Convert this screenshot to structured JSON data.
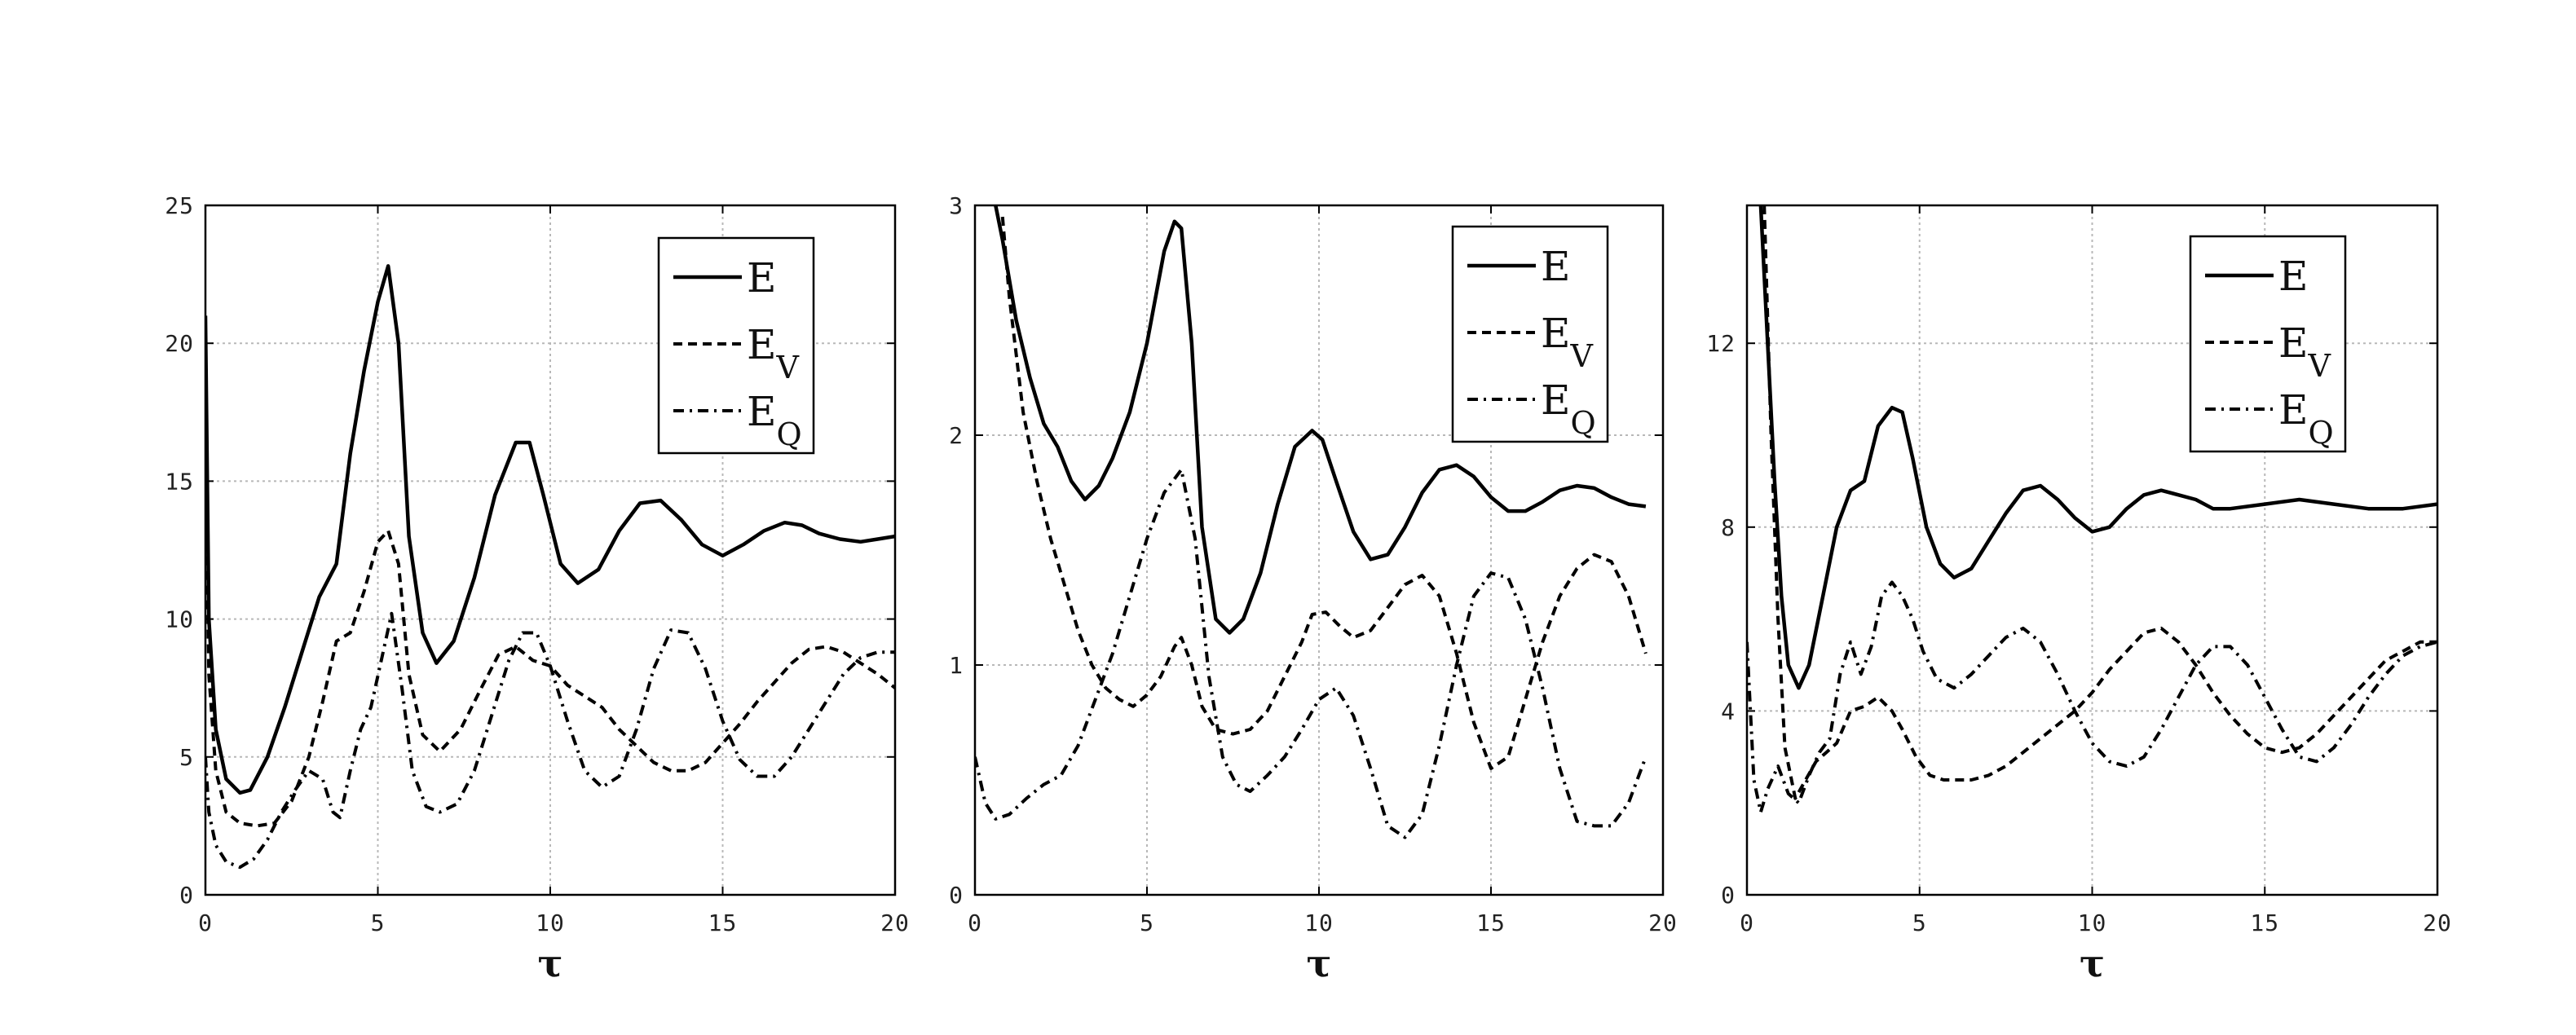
{
  "chart_data": [
    {
      "type": "line",
      "xlabel": "τ",
      "ylabel": "",
      "xlim": [
        0,
        20
      ],
      "ylim": [
        0,
        25
      ],
      "xticks": [
        "0",
        "5",
        "10",
        "15",
        "20"
      ],
      "yticks": [
        "0",
        "5",
        "10",
        "15",
        "20",
        "25"
      ],
      "grid": true,
      "legend_position": "top-right",
      "series": [
        {
          "name": "E",
          "sub": "",
          "style": "solid",
          "x": [
            0,
            0.1,
            0.3,
            0.6,
            1.0,
            1.3,
            1.8,
            2.3,
            2.8,
            3.3,
            3.8,
            4.2,
            4.6,
            5.0,
            5.3,
            5.6,
            5.9,
            6.3,
            6.7,
            7.2,
            7.8,
            8.4,
            9.0,
            9.4,
            9.8,
            10.3,
            10.8,
            11.4,
            12.0,
            12.6,
            13.2,
            13.8,
            14.4,
            15.0,
            15.6,
            16.2,
            16.8,
            17.3,
            17.8,
            18.4,
            19.0,
            19.5,
            20
          ],
          "y": [
            21,
            10,
            6,
            4.2,
            3.7,
            3.8,
            5,
            6.8,
            8.8,
            10.8,
            12,
            16,
            19,
            21.5,
            22.8,
            20,
            13,
            9.5,
            8.4,
            9.2,
            11.5,
            14.5,
            16.4,
            16.4,
            14.5,
            12,
            11.3,
            11.8,
            13.2,
            14.2,
            14.3,
            13.6,
            12.7,
            12.3,
            12.7,
            13.2,
            13.5,
            13.4,
            13.1,
            12.9,
            12.8,
            12.9,
            13.0
          ]
        },
        {
          "name": "E",
          "sub": "V",
          "style": "dashed",
          "x": [
            0,
            0.1,
            0.3,
            0.6,
            1.0,
            1.5,
            2.0,
            2.5,
            3.0,
            3.4,
            3.8,
            4.2,
            4.6,
            5.0,
            5.3,
            5.6,
            5.9,
            6.3,
            6.8,
            7.4,
            8.0,
            8.5,
            9.0,
            9.5,
            10.0,
            10.5,
            11.0,
            11.5,
            12.0,
            12.5,
            13.0,
            13.5,
            14.0,
            14.5,
            15.0,
            15.5,
            16.0,
            16.5,
            17.0,
            17.5,
            18.0,
            18.5,
            19.0,
            19.5,
            20
          ],
          "y": [
            16,
            8,
            4.5,
            3.0,
            2.6,
            2.5,
            2.6,
            3.4,
            5,
            7,
            9.2,
            9.5,
            11,
            12.8,
            13.2,
            12.0,
            8,
            5.8,
            5.2,
            6,
            7.5,
            8.7,
            9.0,
            8.5,
            8.3,
            7.6,
            7.2,
            6.8,
            6.0,
            5.4,
            4.8,
            4.5,
            4.5,
            4.8,
            5.5,
            6.2,
            7.0,
            7.7,
            8.4,
            8.9,
            9.0,
            8.8,
            8.4,
            8.0,
            7.5
          ]
        },
        {
          "name": "E",
          "sub": "Q",
          "style": "dashdot",
          "x": [
            0,
            0.1,
            0.3,
            0.6,
            1.0,
            1.4,
            1.8,
            2.2,
            2.6,
            3.0,
            3.4,
            3.7,
            3.9,
            4.2,
            4.5,
            4.8,
            5.1,
            5.4,
            5.7,
            6.0,
            6.4,
            6.8,
            7.3,
            7.8,
            8.3,
            8.8,
            9.2,
            9.6,
            10.0,
            10.5,
            11.0,
            11.5,
            12.0,
            12.5,
            13.0,
            13.5,
            14.0,
            14.5,
            15.0,
            15.5,
            16.0,
            16.5,
            17.0,
            17.5,
            18.0,
            18.5,
            19.0,
            19.5,
            20
          ],
          "y": [
            5,
            3,
            1.8,
            1.2,
            1.0,
            1.3,
            2.0,
            3,
            3.8,
            4.5,
            4.2,
            3.0,
            2.8,
            4.5,
            6.0,
            6.8,
            8.5,
            10.2,
            7.5,
            4.5,
            3.2,
            3.0,
            3.3,
            4.5,
            6.5,
            8.5,
            9.5,
            9.5,
            8.3,
            6.3,
            4.5,
            3.9,
            4.3,
            6.0,
            8.2,
            9.6,
            9.5,
            8.2,
            6.3,
            4.9,
            4.3,
            4.3,
            5.0,
            6.0,
            7.0,
            8.0,
            8.6,
            8.8,
            8.8
          ]
        }
      ]
    },
    {
      "type": "line",
      "xlabel": "τ",
      "ylabel": "",
      "xlim": [
        0,
        20
      ],
      "ylim": [
        0,
        3
      ],
      "xticks": [
        "0",
        "5",
        "10",
        "15",
        "20"
      ],
      "yticks": [
        "0",
        "1",
        "2",
        "3"
      ],
      "grid": true,
      "legend_position": "top-right",
      "series": [
        {
          "name": "E",
          "sub": "",
          "style": "solid",
          "x": [
            0.6,
            0.8,
            1.2,
            1.6,
            2.0,
            2.4,
            2.8,
            3.2,
            3.6,
            4.0,
            4.5,
            5.0,
            5.5,
            5.8,
            6.0,
            6.3,
            6.6,
            7.0,
            7.4,
            7.8,
            8.3,
            8.8,
            9.3,
            9.8,
            10.1,
            10.5,
            11.0,
            11.5,
            12.0,
            12.5,
            13.0,
            13.5,
            14.0,
            14.5,
            15.0,
            15.5,
            16.0,
            16.5,
            17.0,
            17.5,
            18.0,
            18.5,
            19.0,
            19.5
          ],
          "y": [
            3.0,
            2.85,
            2.5,
            2.25,
            2.05,
            1.95,
            1.8,
            1.72,
            1.78,
            1.9,
            2.1,
            2.4,
            2.8,
            2.93,
            2.9,
            2.4,
            1.6,
            1.2,
            1.14,
            1.2,
            1.4,
            1.7,
            1.95,
            2.02,
            1.98,
            1.8,
            1.58,
            1.46,
            1.48,
            1.6,
            1.75,
            1.85,
            1.87,
            1.82,
            1.73,
            1.67,
            1.67,
            1.71,
            1.76,
            1.78,
            1.77,
            1.73,
            1.7,
            1.69
          ]
        },
        {
          "name": "E",
          "sub": "V",
          "style": "dashed",
          "x": [
            0.8,
            1.0,
            1.4,
            1.8,
            2.2,
            2.6,
            3.0,
            3.4,
            3.8,
            4.2,
            4.6,
            5.0,
            5.4,
            5.8,
            6.0,
            6.3,
            6.6,
            7.0,
            7.5,
            8.0,
            8.5,
            9.0,
            9.5,
            9.8,
            10.2,
            10.6,
            11.0,
            11.5,
            12.0,
            12.5,
            13.0,
            13.5,
            14.0,
            14.5,
            15.0,
            15.5,
            16.0,
            16.5,
            17.0,
            17.5,
            18.0,
            18.5,
            19.0,
            19.5
          ],
          "y": [
            2.95,
            2.6,
            2.1,
            1.8,
            1.55,
            1.35,
            1.15,
            1.0,
            0.9,
            0.85,
            0.82,
            0.87,
            0.95,
            1.08,
            1.12,
            1.0,
            0.82,
            0.72,
            0.7,
            0.72,
            0.8,
            0.95,
            1.1,
            1.22,
            1.23,
            1.17,
            1.12,
            1.15,
            1.25,
            1.35,
            1.39,
            1.3,
            1.05,
            0.75,
            0.55,
            0.6,
            0.85,
            1.1,
            1.3,
            1.42,
            1.48,
            1.45,
            1.3,
            1.05
          ]
        },
        {
          "name": "E",
          "sub": "Q",
          "style": "dashdot",
          "x": [
            0,
            0.3,
            0.6,
            1.0,
            1.5,
            2.0,
            2.5,
            3.0,
            3.5,
            4.0,
            4.5,
            5.0,
            5.5,
            6.0,
            6.4,
            6.8,
            7.2,
            7.6,
            8.0,
            8.5,
            9.0,
            9.5,
            10.0,
            10.5,
            11.0,
            11.5,
            12.0,
            12.5,
            13.0,
            13.5,
            14.0,
            14.5,
            15.0,
            15.5,
            16.0,
            16.5,
            17.0,
            17.5,
            18.0,
            18.5,
            19.0,
            19.5
          ],
          "y": [
            0.6,
            0.4,
            0.33,
            0.35,
            0.42,
            0.48,
            0.52,
            0.65,
            0.85,
            1.05,
            1.3,
            1.55,
            1.75,
            1.85,
            1.55,
            0.95,
            0.6,
            0.48,
            0.45,
            0.52,
            0.6,
            0.72,
            0.85,
            0.9,
            0.78,
            0.55,
            0.3,
            0.25,
            0.35,
            0.65,
            1.0,
            1.3,
            1.4,
            1.38,
            1.2,
            0.9,
            0.55,
            0.32,
            0.3,
            0.3,
            0.4,
            0.6
          ]
        }
      ]
    },
    {
      "type": "line",
      "xlabel": "τ",
      "ylabel": "",
      "xlim": [
        0,
        20
      ],
      "ylim": [
        0,
        15
      ],
      "xticks": [
        "0",
        "5",
        "10",
        "15",
        "20"
      ],
      "yticks": [
        "0",
        "4",
        "8",
        "12"
      ],
      "grid": true,
      "legend_position": "top-right",
      "series": [
        {
          "name": "E",
          "sub": "",
          "style": "solid",
          "x": [
            0.4,
            0.6,
            0.8,
            1.0,
            1.2,
            1.5,
            1.8,
            2.2,
            2.6,
            3.0,
            3.4,
            3.8,
            4.2,
            4.5,
            4.8,
            5.2,
            5.6,
            6.0,
            6.5,
            7.0,
            7.5,
            8.0,
            8.5,
            9.0,
            9.5,
            10.0,
            10.5,
            11.0,
            11.5,
            12.0,
            12.5,
            13.0,
            13.5,
            14.0,
            15.0,
            16.0,
            17.0,
            18.0,
            19.0,
            20.0
          ],
          "y": [
            15,
            12,
            9,
            6.5,
            5,
            4.5,
            5,
            6.5,
            8,
            8.8,
            9.0,
            10.2,
            10.6,
            10.5,
            9.5,
            8,
            7.2,
            6.9,
            7.1,
            7.7,
            8.3,
            8.8,
            8.9,
            8.6,
            8.2,
            7.9,
            8.0,
            8.4,
            8.7,
            8.8,
            8.7,
            8.6,
            8.4,
            8.4,
            8.5,
            8.6,
            8.5,
            8.4,
            8.4,
            8.5
          ]
        },
        {
          "name": "E",
          "sub": "V",
          "style": "dashed",
          "x": [
            0.5,
            0.7,
            0.9,
            1.1,
            1.4,
            1.7,
            2.0,
            2.3,
            2.6,
            3.0,
            3.4,
            3.8,
            4.2,
            4.5,
            4.9,
            5.3,
            5.7,
            6.1,
            6.5,
            7.0,
            7.5,
            8.0,
            8.5,
            9.0,
            9.5,
            10.0,
            10.5,
            11.0,
            11.5,
            12.0,
            12.5,
            13.0,
            13.5,
            14.0,
            14.5,
            15.0,
            15.5,
            16.0,
            16.5,
            17.0,
            17.5,
            18.0,
            18.5,
            19.0,
            19.5,
            20.0
          ],
          "y": [
            15,
            10,
            6,
            3.2,
            2.1,
            2.5,
            2.9,
            3.1,
            3.3,
            4.0,
            4.1,
            4.3,
            4.0,
            3.6,
            3.0,
            2.6,
            2.5,
            2.5,
            2.5,
            2.6,
            2.8,
            3.1,
            3.4,
            3.7,
            4.0,
            4.4,
            4.9,
            5.3,
            5.7,
            5.8,
            5.5,
            5.0,
            4.4,
            3.9,
            3.5,
            3.2,
            3.1,
            3.2,
            3.5,
            3.9,
            4.3,
            4.7,
            5.1,
            5.3,
            5.5,
            5.5
          ]
        },
        {
          "name": "E",
          "sub": "Q",
          "style": "dashdot",
          "x": [
            0,
            0.2,
            0.4,
            0.6,
            0.9,
            1.2,
            1.5,
            1.8,
            2.1,
            2.4,
            2.7,
            3.0,
            3.3,
            3.6,
            3.9,
            4.2,
            4.5,
            4.8,
            5.1,
            5.5,
            6.0,
            6.5,
            7.0,
            7.5,
            8.0,
            8.5,
            9.0,
            9.5,
            10.0,
            10.5,
            11.0,
            11.5,
            12.0,
            12.5,
            13.0,
            13.5,
            14.0,
            14.5,
            15.0,
            15.5,
            16.0,
            16.5,
            17.0,
            17.5,
            18.0,
            18.5,
            19.0,
            19.5,
            20.0
          ],
          "y": [
            5.5,
            2.5,
            1.8,
            2.3,
            2.8,
            2.2,
            2.0,
            2.6,
            3.1,
            3.4,
            4.8,
            5.5,
            4.8,
            5.4,
            6.5,
            6.8,
            6.5,
            6.0,
            5.3,
            4.7,
            4.5,
            4.8,
            5.2,
            5.6,
            5.8,
            5.5,
            4.8,
            4.0,
            3.3,
            2.9,
            2.8,
            3.0,
            3.6,
            4.3,
            5.0,
            5.4,
            5.4,
            5.0,
            4.3,
            3.6,
            3.0,
            2.9,
            3.2,
            3.7,
            4.3,
            4.8,
            5.2,
            5.4,
            5.5
          ]
        }
      ]
    }
  ]
}
